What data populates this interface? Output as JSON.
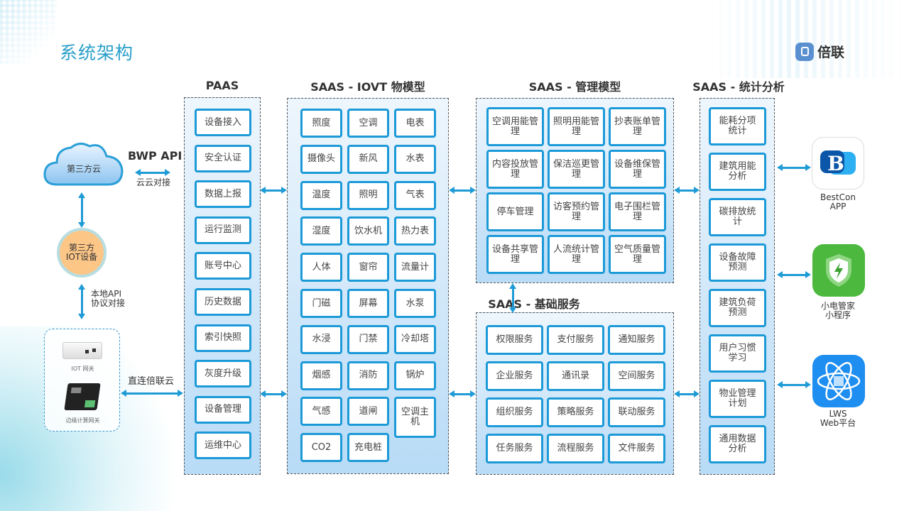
{
  "header": {
    "title": "系统架构",
    "logo_text": "倍联"
  },
  "left": {
    "cloud": "第三方云",
    "bwp_api": "BWP API",
    "cloud_link": "云云对接",
    "iot_device": [
      "第三方",
      "IOT设备"
    ],
    "local_api": [
      "本地API",
      "协议对接"
    ],
    "iot_gateway": "IOT 网关",
    "edge_gateway": "边缘计算网关",
    "direct_link": "直连倍联云"
  },
  "paas": {
    "title": "PAAS",
    "items": [
      "设备接入",
      "安全认证",
      "数据上报",
      "运行监测",
      "账号中心",
      "历史数据",
      "索引快照",
      "灰度升级",
      "设备管理",
      "运维中心"
    ]
  },
  "iovt": {
    "title": "SAAS - IOVT 物模型",
    "rows": [
      [
        "照度",
        "空调",
        "电表"
      ],
      [
        "摄像头",
        "新风",
        "水表"
      ],
      [
        "温度",
        "照明",
        "气表"
      ],
      [
        "湿度",
        "饮水机",
        "热力表"
      ],
      [
        "人体",
        "窗帘",
        "流量计"
      ],
      [
        "门磁",
        "屏幕",
        "水泵"
      ],
      [
        "水浸",
        "门禁",
        "冷却塔"
      ],
      [
        "烟感",
        "消防",
        "锅炉"
      ],
      [
        "气感",
        "道闸",
        "空调主机"
      ],
      [
        "CO2",
        "充电桩"
      ]
    ]
  },
  "management": {
    "title": "SAAS - 管理模型",
    "items": [
      "空调用能管理",
      "照明用能管理",
      "抄表账单管理",
      "内容投放管理",
      "保洁巡更管理",
      "设备维保管理",
      "停车管理",
      "访客预约管理",
      "电子围栏管理",
      "设备共享管理",
      "人流统计管理",
      "空气质量管理"
    ]
  },
  "basic": {
    "title": "SAAS - 基础服务",
    "items": [
      "权限服务",
      "支付服务",
      "通知服务",
      "企业服务",
      "通讯录",
      "空间服务",
      "组织服务",
      "策略服务",
      "联动服务",
      "任务服务",
      "流程服务",
      "文件服务"
    ]
  },
  "stats": {
    "title": "SAAS - 统计分析",
    "items": [
      "能耗分项统计",
      "建筑用能分析",
      "碳排放统计",
      "设备故障预测",
      "建筑负荷预测",
      "用户习惯学习",
      "物业管理计划",
      "通用数据分析"
    ]
  },
  "apps": [
    {
      "name": [
        "BestCon",
        "APP"
      ],
      "icon": "bestcon-b-icon",
      "color": "#ffffff"
    },
    {
      "name": [
        "小电管家",
        "小程序"
      ],
      "icon": "shield-lightning-icon",
      "color": "#4cb83e"
    },
    {
      "name": [
        "LWS",
        "Web平台"
      ],
      "icon": "atom-icon",
      "color": "#1e8ef0"
    }
  ]
}
